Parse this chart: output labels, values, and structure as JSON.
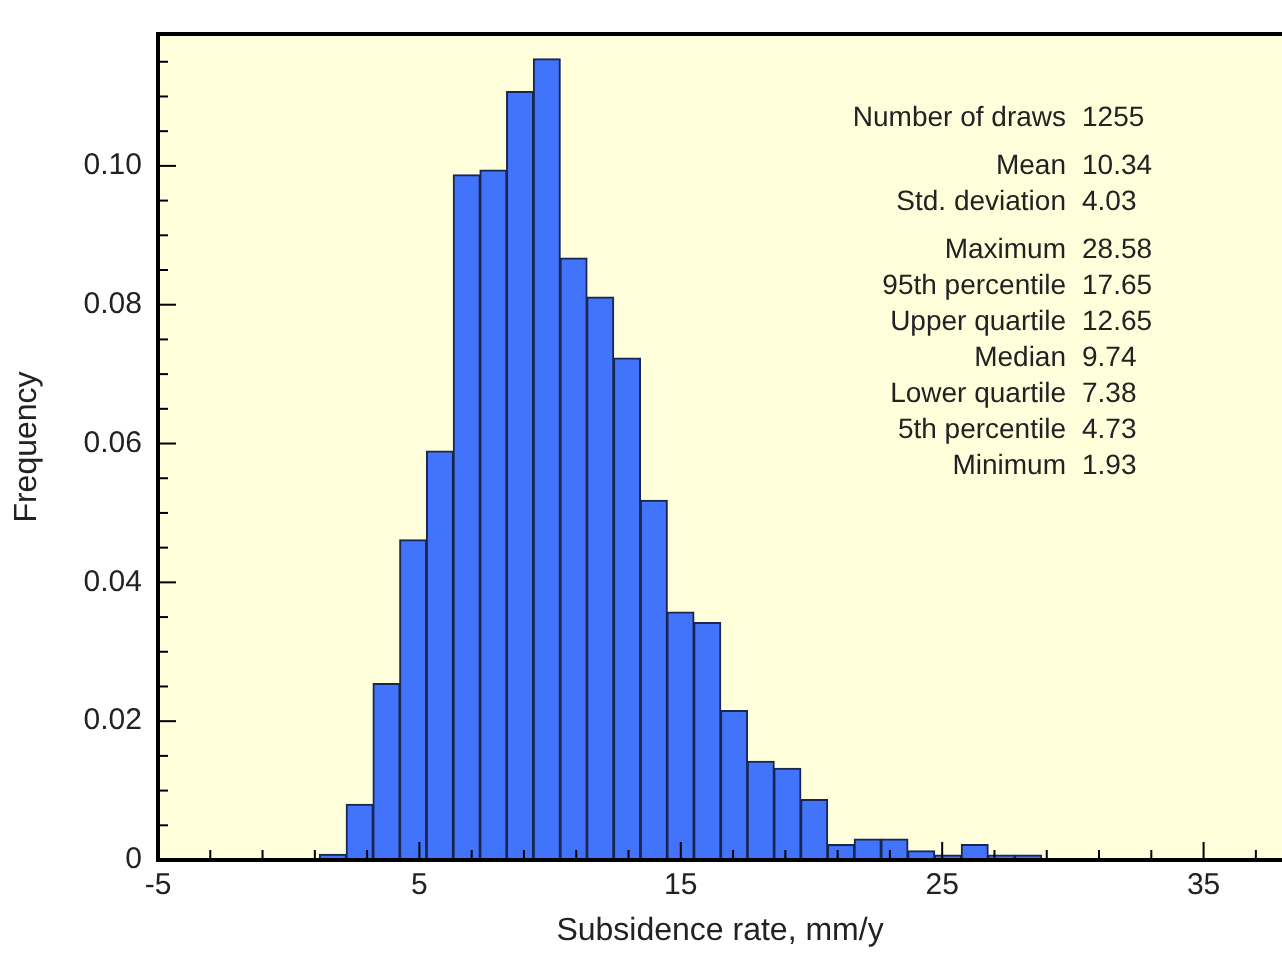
{
  "chart_data": {
    "type": "histogram",
    "xlabel": "Subsidence rate, mm/y",
    "ylabel": "Frequency",
    "bins": [
      1.18,
      2.2,
      3.23,
      4.25,
      5.27,
      6.3,
      7.32,
      8.34,
      9.36,
      10.39,
      11.41,
      12.43,
      13.46,
      14.48,
      15.5,
      16.53,
      17.55,
      18.57,
      19.59,
      20.62,
      21.64,
      22.66,
      23.69,
      24.71,
      25.73,
      26.76,
      27.78,
      28.8
    ],
    "values": [
      0.0008,
      0.008,
      0.0254,
      0.0461,
      0.0589,
      0.0987,
      0.0994,
      0.1107,
      0.1154,
      0.0867,
      0.0811,
      0.0723,
      0.0518,
      0.0357,
      0.0342,
      0.0215,
      0.0142,
      0.0132,
      0.0087,
      0.0022,
      0.003,
      0.003,
      0.0013,
      0.0007,
      0.0022,
      0.0007,
      0.0007
    ],
    "color": "#4173fb",
    "xlim": [
      -5,
      38
    ],
    "xticks": [
      -5,
      {
        "value": -3,
        "label": null
      },
      {
        "value": -1,
        "label": null
      },
      {
        "value": 1,
        "label": null
      },
      {
        "value": 3,
        "label": null
      },
      5,
      {
        "value": 7,
        "label": null
      },
      {
        "value": 9,
        "label": null
      },
      {
        "value": 11,
        "label": null
      },
      {
        "value": 13,
        "label": null
      },
      15,
      {
        "value": 17,
        "label": null
      },
      {
        "value": 19,
        "label": null
      },
      {
        "value": 21,
        "label": null
      },
      {
        "value": 23,
        "label": null
      },
      25,
      {
        "value": 27,
        "label": null
      },
      {
        "value": 29,
        "label": null
      },
      {
        "value": 31,
        "label": null
      },
      {
        "value": 33,
        "label": null
      },
      35,
      {
        "value": 37,
        "label": null
      }
    ],
    "ylim": [
      0,
      0.119
    ],
    "yticks": [
      0,
      {
        "value": 0.005,
        "label": null
      },
      {
        "value": 0.01,
        "label": null
      },
      {
        "value": 0.015,
        "label": null
      },
      {
        "value": 0.02,
        "label": "0.02"
      },
      {
        "value": 0.025,
        "label": null
      },
      {
        "value": 0.03,
        "label": null
      },
      {
        "value": 0.035,
        "label": null
      },
      {
        "value": 0.04,
        "label": "0.04"
      },
      {
        "value": 0.045,
        "label": null
      },
      {
        "value": 0.05,
        "label": null
      },
      {
        "value": 0.055,
        "label": null
      },
      {
        "value": 0.06,
        "label": "0.06"
      },
      {
        "value": 0.065,
        "label": null
      },
      {
        "value": 0.07,
        "label": null
      },
      {
        "value": 0.075,
        "label": null
      },
      {
        "value": 0.08,
        "label": "0.08"
      },
      {
        "value": 0.085,
        "label": null
      },
      {
        "value": 0.09,
        "label": null
      },
      {
        "value": 0.095,
        "label": null
      },
      {
        "value": 0.1,
        "label": "0.10"
      },
      {
        "value": 0.105,
        "label": null
      },
      {
        "value": 0.11,
        "label": null
      },
      {
        "value": 0.115,
        "label": null
      }
    ],
    "grid": false,
    "legend": false,
    "annotations": [
      "Number of draws 1255",
      "Mean 10.34",
      "Std. deviation 4.03",
      "Maximum 28.58",
      "95th percentile 17.65",
      "Upper quartile 12.65",
      "Median 9.74",
      "Lower quartile 7.38",
      "5th percentile 4.73",
      "Minimum 1.93"
    ]
  }
}
